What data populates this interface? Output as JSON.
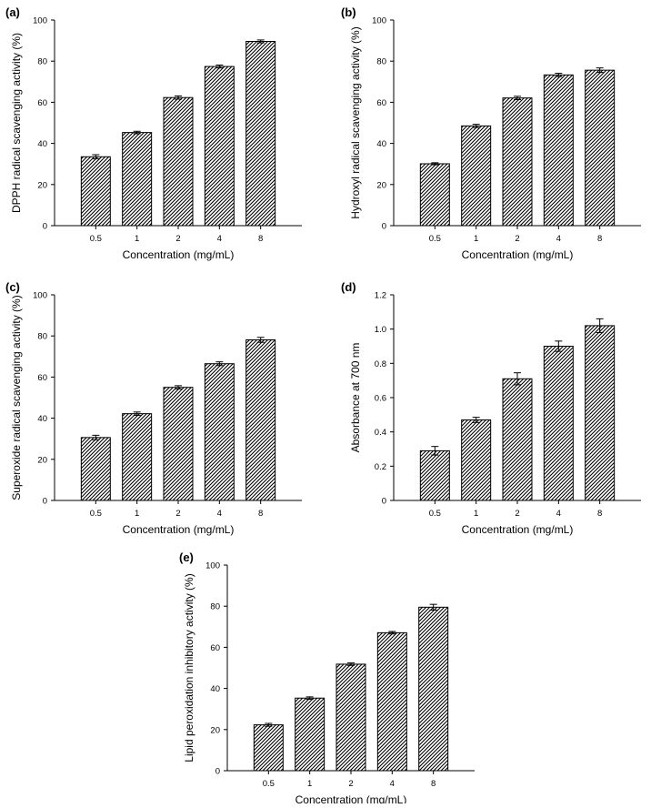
{
  "chart_data": [
    {
      "type": "bar",
      "panel_label": "(a)",
      "categories": [
        "0.5",
        "1",
        "2",
        "4",
        "8"
      ],
      "values": [
        33.5,
        45.3,
        62.3,
        77.4,
        89.6
      ],
      "errors": [
        1.0,
        0.6,
        0.8,
        0.7,
        0.7
      ],
      "xlabel": "Concentration (mg/mL)",
      "ylabel": "DPPH radical scavenging activity (%)",
      "ylim": [
        0,
        100
      ],
      "yticks": [
        "0",
        "20",
        "40",
        "60",
        "80",
        "100"
      ],
      "grid": false,
      "bar_fill": "diagonal-hatch",
      "bar_color": "#000000"
    },
    {
      "type": "bar",
      "panel_label": "(b)",
      "categories": [
        "0.5",
        "1",
        "2",
        "4",
        "8"
      ],
      "values": [
        30.1,
        48.5,
        62.1,
        73.3,
        75.6
      ],
      "errors": [
        0.5,
        0.8,
        0.8,
        0.8,
        1.1
      ],
      "xlabel": "Concentration (mg/mL)",
      "ylabel": "Hydroxyl radical scavenging activity (%)",
      "ylim": [
        0,
        100
      ],
      "yticks": [
        "0",
        "20",
        "40",
        "60",
        "80",
        "100"
      ],
      "grid": false,
      "bar_fill": "diagonal-hatch",
      "bar_color": "#000000"
    },
    {
      "type": "bar",
      "panel_label": "(c)",
      "categories": [
        "0.5",
        "1",
        "2",
        "4",
        "8"
      ],
      "values": [
        30.6,
        42.2,
        55.0,
        66.5,
        78.1
      ],
      "errors": [
        1.1,
        0.8,
        0.8,
        0.9,
        1.2
      ],
      "xlabel": "Concentration (mg/mL)",
      "ylabel": "Superoxide radical scavenging activity (%)",
      "ylim": [
        0,
        100
      ],
      "yticks": [
        "0",
        "20",
        "40",
        "60",
        "80",
        "100"
      ],
      "grid": false,
      "bar_fill": "diagonal-hatch",
      "bar_color": "#000000"
    },
    {
      "type": "bar",
      "panel_label": "(d)",
      "categories": [
        "0.5",
        "1",
        "2",
        "4",
        "8"
      ],
      "values": [
        0.29,
        0.47,
        0.71,
        0.9,
        1.02
      ],
      "errors": [
        0.025,
        0.015,
        0.035,
        0.03,
        0.04
      ],
      "xlabel": "Concentration (mg/mL)",
      "ylabel": "Absorbance at 700 nm",
      "ylim": [
        0,
        1.2
      ],
      "yticks": [
        "0",
        "0.2",
        "0.4",
        "0.6",
        "0.8",
        "1.0",
        "1.2"
      ],
      "grid": false,
      "bar_fill": "diagonal-hatch",
      "bar_color": "#000000"
    },
    {
      "type": "bar",
      "panel_label": "(e)",
      "categories": [
        "0.5",
        "1",
        "2",
        "4",
        "8"
      ],
      "values": [
        22.3,
        35.3,
        51.8,
        67.1,
        79.5
      ],
      "errors": [
        0.7,
        0.6,
        0.6,
        0.6,
        1.4
      ],
      "xlabel": "Concentration (mg/mL)",
      "ylabel": "Lipid peroxidation inhibitory activity (%)",
      "ylim": [
        0,
        100
      ],
      "yticks": [
        "0",
        "20",
        "40",
        "60",
        "80",
        "100"
      ],
      "grid": false,
      "bar_fill": "diagonal-hatch",
      "bar_color": "#000000"
    }
  ]
}
